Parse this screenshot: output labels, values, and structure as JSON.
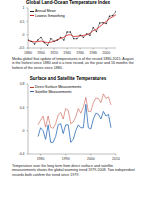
{
  "chart_data": [
    {
      "type": "line",
      "title": "Global Land-Ocean Temperature Index",
      "x": [
        1880,
        1885,
        1890,
        1895,
        1900,
        1905,
        1910,
        1915,
        1920,
        1925,
        1930,
        1935,
        1940,
        1945,
        1950,
        1955,
        1960,
        1965,
        1970,
        1975,
        1980,
        1985,
        1990,
        1995,
        2000,
        2005,
        2010,
        2015
      ],
      "series": [
        {
          "name": "Annual Mean",
          "color": "#222222",
          "marker": "circle",
          "values": [
            -0.2,
            -0.25,
            -0.35,
            -0.2,
            -0.1,
            -0.3,
            -0.4,
            -0.15,
            -0.25,
            -0.2,
            -0.1,
            -0.2,
            0.1,
            0.1,
            -0.15,
            -0.15,
            -0.02,
            -0.1,
            0.03,
            -0.02,
            0.26,
            0.12,
            0.44,
            0.45,
            0.42,
            0.69,
            0.72,
            0.87
          ]
        },
        {
          "name": "Lowess Smoothing",
          "color": "#d62020",
          "values": [
            -0.22,
            -0.25,
            -0.27,
            -0.26,
            -0.24,
            -0.27,
            -0.3,
            -0.28,
            -0.25,
            -0.2,
            -0.14,
            -0.1,
            -0.02,
            0.0,
            -0.07,
            -0.06,
            -0.04,
            -0.03,
            0.0,
            0.05,
            0.15,
            0.2,
            0.3,
            0.4,
            0.5,
            0.6,
            0.67,
            0.75
          ]
        }
      ],
      "xlim": [
        1880,
        2015
      ],
      "xticks": [
        1880,
        1900,
        1920,
        1940,
        1960,
        1980,
        2000
      ],
      "ylim": [
        -0.5,
        1
      ],
      "yticks": [
        -0.5,
        0,
        0.5,
        1
      ],
      "grid": false,
      "legend": "upper left"
    },
    {
      "type": "line",
      "title": "Surface and Satellite Temperatures",
      "x": [
        1979,
        1980,
        1981,
        1982,
        1983,
        1984,
        1985,
        1986,
        1987,
        1988,
        1989,
        1990,
        1991,
        1992,
        1993,
        1994,
        1995,
        1996,
        1997,
        1998,
        1999,
        2000,
        2001,
        2002,
        2003,
        2004,
        2005,
        2006,
        2007,
        2008
      ],
      "series": [
        {
          "name": "Direct Surface Measurements",
          "color": "#c0392b",
          "values": [
            0.1,
            0.18,
            0.25,
            0.06,
            0.25,
            0.06,
            0.04,
            0.12,
            0.27,
            0.31,
            0.2,
            0.38,
            0.35,
            0.12,
            0.15,
            0.24,
            0.38,
            0.3,
            0.4,
            0.57,
            0.33,
            0.33,
            0.48,
            0.56,
            0.55,
            0.48,
            0.63,
            0.55,
            0.58,
            0.44
          ]
        },
        {
          "name": "Satellite Measurements",
          "color": "#2f6db5",
          "values": [
            -0.1,
            0.05,
            0.0,
            -0.15,
            0.1,
            -0.2,
            -0.2,
            -0.1,
            0.1,
            0.12,
            -0.05,
            0.1,
            0.1,
            -0.2,
            -0.15,
            0.0,
            0.1,
            0.05,
            0.05,
            0.45,
            0.05,
            0.03,
            0.2,
            0.3,
            0.28,
            0.2,
            0.33,
            0.25,
            0.28,
            0.05
          ]
        }
      ],
      "xlim": [
        1975,
        2010
      ],
      "xticks": [
        1980,
        1990,
        2000,
        2010
      ],
      "ylim": [
        -0.4,
        0.8
      ],
      "yticks": [
        -0.4,
        0,
        0.4,
        0.8
      ],
      "grid": false,
      "legend": "upper left"
    }
  ],
  "text": [
    "Media global that update of temperatures is of the record 1880-2015. August is the hottest since 1880 and is a new record, as the year and 16 months the hottest of the series since 1880.",
    "Temperature over the long term from direct surface and satellite measurements shows the global warming trend 1979-2008. Two independent records both confirm the trend since 1979."
  ]
}
